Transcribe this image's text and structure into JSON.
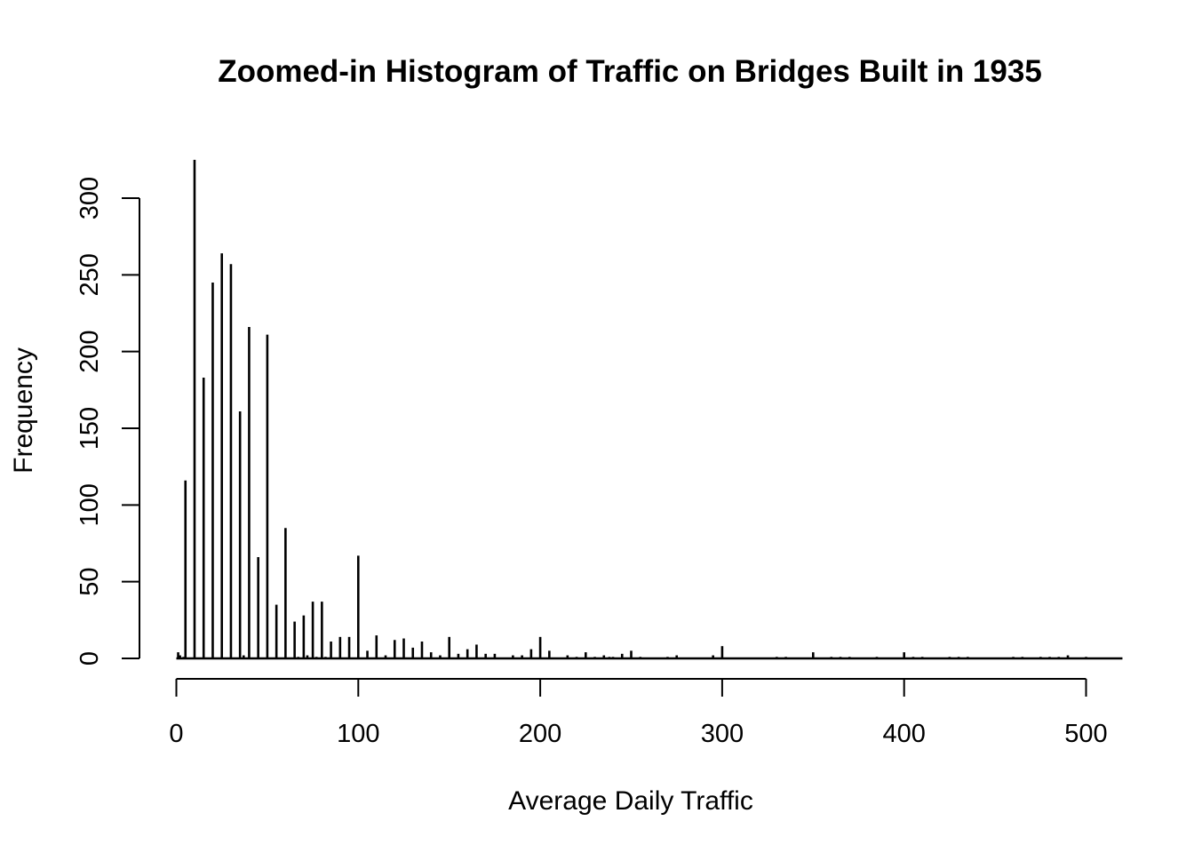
{
  "chart_data": {
    "type": "bar",
    "title": "Zoomed-in Histogram of Traffic on Bridges Built in 1935",
    "xlabel": "Average Daily Traffic",
    "ylabel": "Frequency",
    "xlim": [
      0,
      520
    ],
    "ylim": [
      0,
      325
    ],
    "xticks": [
      0,
      100,
      200,
      300,
      400,
      500
    ],
    "yticks": [
      0,
      50,
      100,
      150,
      200,
      250,
      300
    ],
    "grid": false,
    "legend": "none",
    "bar_color": "#000000",
    "bars": [
      {
        "x": 1,
        "y": 4
      },
      {
        "x": 2,
        "y": 2
      },
      {
        "x": 4,
        "y": 1
      },
      {
        "x": 5,
        "y": 116
      },
      {
        "x": 10,
        "y": 325
      },
      {
        "x": 15,
        "y": 183
      },
      {
        "x": 20,
        "y": 245
      },
      {
        "x": 25,
        "y": 264
      },
      {
        "x": 30,
        "y": 257
      },
      {
        "x": 35,
        "y": 161
      },
      {
        "x": 37,
        "y": 2
      },
      {
        "x": 40,
        "y": 216
      },
      {
        "x": 45,
        "y": 66
      },
      {
        "x": 50,
        "y": 211
      },
      {
        "x": 55,
        "y": 35
      },
      {
        "x": 60,
        "y": 85
      },
      {
        "x": 65,
        "y": 24
      },
      {
        "x": 67,
        "y": 1
      },
      {
        "x": 70,
        "y": 28
      },
      {
        "x": 72,
        "y": 2
      },
      {
        "x": 75,
        "y": 37
      },
      {
        "x": 77,
        "y": 1
      },
      {
        "x": 80,
        "y": 37
      },
      {
        "x": 82,
        "y": 1
      },
      {
        "x": 85,
        "y": 11
      },
      {
        "x": 90,
        "y": 14
      },
      {
        "x": 95,
        "y": 14
      },
      {
        "x": 100,
        "y": 67
      },
      {
        "x": 105,
        "y": 5
      },
      {
        "x": 110,
        "y": 15
      },
      {
        "x": 115,
        "y": 2
      },
      {
        "x": 120,
        "y": 12
      },
      {
        "x": 125,
        "y": 13
      },
      {
        "x": 130,
        "y": 7
      },
      {
        "x": 135,
        "y": 11
      },
      {
        "x": 140,
        "y": 4
      },
      {
        "x": 145,
        "y": 2
      },
      {
        "x": 150,
        "y": 14
      },
      {
        "x": 155,
        "y": 3
      },
      {
        "x": 160,
        "y": 6
      },
      {
        "x": 165,
        "y": 9
      },
      {
        "x": 170,
        "y": 3
      },
      {
        "x": 175,
        "y": 3
      },
      {
        "x": 185,
        "y": 2
      },
      {
        "x": 190,
        "y": 2
      },
      {
        "x": 195,
        "y": 6
      },
      {
        "x": 200,
        "y": 14
      },
      {
        "x": 205,
        "y": 5
      },
      {
        "x": 215,
        "y": 2
      },
      {
        "x": 220,
        "y": 1
      },
      {
        "x": 225,
        "y": 4
      },
      {
        "x": 230,
        "y": 1
      },
      {
        "x": 235,
        "y": 2
      },
      {
        "x": 238,
        "y": 1
      },
      {
        "x": 240,
        "y": 1
      },
      {
        "x": 245,
        "y": 3
      },
      {
        "x": 250,
        "y": 5
      },
      {
        "x": 255,
        "y": 1
      },
      {
        "x": 270,
        "y": 1
      },
      {
        "x": 275,
        "y": 2
      },
      {
        "x": 295,
        "y": 2
      },
      {
        "x": 300,
        "y": 8
      },
      {
        "x": 330,
        "y": 1
      },
      {
        "x": 335,
        "y": 1
      },
      {
        "x": 350,
        "y": 4
      },
      {
        "x": 360,
        "y": 1
      },
      {
        "x": 365,
        "y": 1
      },
      {
        "x": 370,
        "y": 1
      },
      {
        "x": 385,
        "y": 1
      },
      {
        "x": 400,
        "y": 4
      },
      {
        "x": 405,
        "y": 1
      },
      {
        "x": 410,
        "y": 1
      },
      {
        "x": 425,
        "y": 1
      },
      {
        "x": 430,
        "y": 1
      },
      {
        "x": 435,
        "y": 1
      },
      {
        "x": 460,
        "y": 1
      },
      {
        "x": 465,
        "y": 1
      },
      {
        "x": 475,
        "y": 1
      },
      {
        "x": 480,
        "y": 1
      },
      {
        "x": 485,
        "y": 1
      },
      {
        "x": 490,
        "y": 2
      },
      {
        "x": 500,
        "y": 1
      }
    ]
  }
}
